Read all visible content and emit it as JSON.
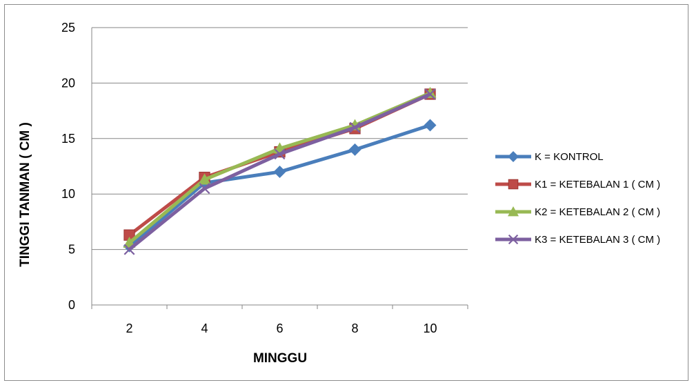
{
  "chart_data": {
    "type": "line",
    "title": "",
    "xlabel": "MINGGU",
    "ylabel": "TINGGI TANMAN ( CM )",
    "categories": [
      "2",
      "4",
      "6",
      "8",
      "10"
    ],
    "ylim": [
      0,
      25
    ],
    "yticks": [
      0,
      5,
      10,
      15,
      20,
      25
    ],
    "grid": true,
    "legend_position": "right",
    "series": [
      {
        "name": "K = KONTROL",
        "values": [
          5.3,
          11.0,
          12.0,
          14.0,
          16.2
        ],
        "color": "#4a7ebb",
        "marker": "diamond"
      },
      {
        "name": "K1 = KETEBALAN 1 ( CM )",
        "values": [
          6.3,
          11.5,
          13.8,
          15.9,
          19.0
        ],
        "color": "#be4b48",
        "marker": "square"
      },
      {
        "name": "K2 = KETEBALAN 2 ( CM )",
        "values": [
          5.6,
          11.3,
          14.1,
          16.2,
          19.1
        ],
        "color": "#98b954",
        "marker": "triangle"
      },
      {
        "name": "K3 = KETEBALAN 3 ( CM )",
        "values": [
          5.0,
          10.5,
          13.6,
          16.0,
          19.0
        ],
        "color": "#7d60a0",
        "marker": "x"
      }
    ]
  }
}
